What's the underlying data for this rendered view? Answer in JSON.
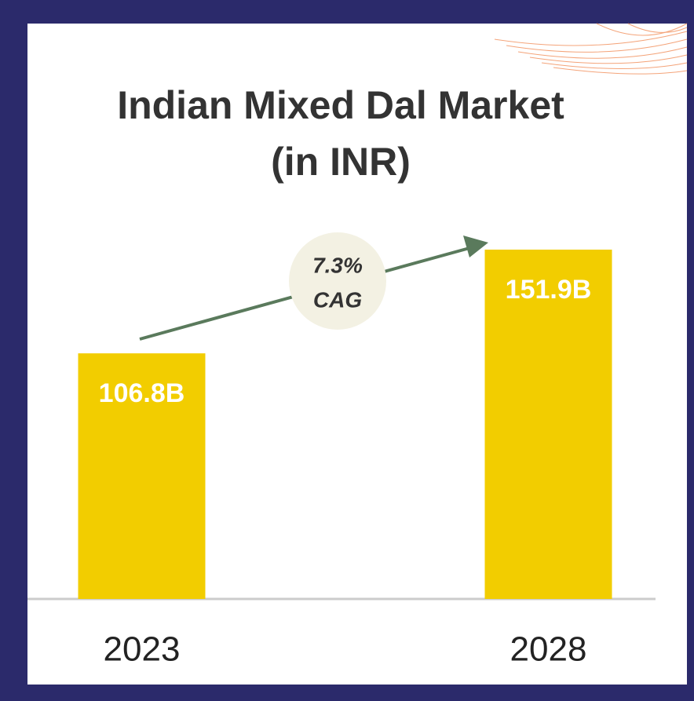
{
  "chart_data": {
    "type": "bar",
    "title": "Indian Mixed Dal Market",
    "subtitle": "(in INR)",
    "categories": [
      "2023",
      "2028"
    ],
    "values": [
      106.8,
      151.9
    ],
    "value_labels": [
      "106.8B",
      "151.9B"
    ],
    "color": "#f2cd00",
    "annotation": [
      "7.3%",
      "CAG"
    ]
  }
}
